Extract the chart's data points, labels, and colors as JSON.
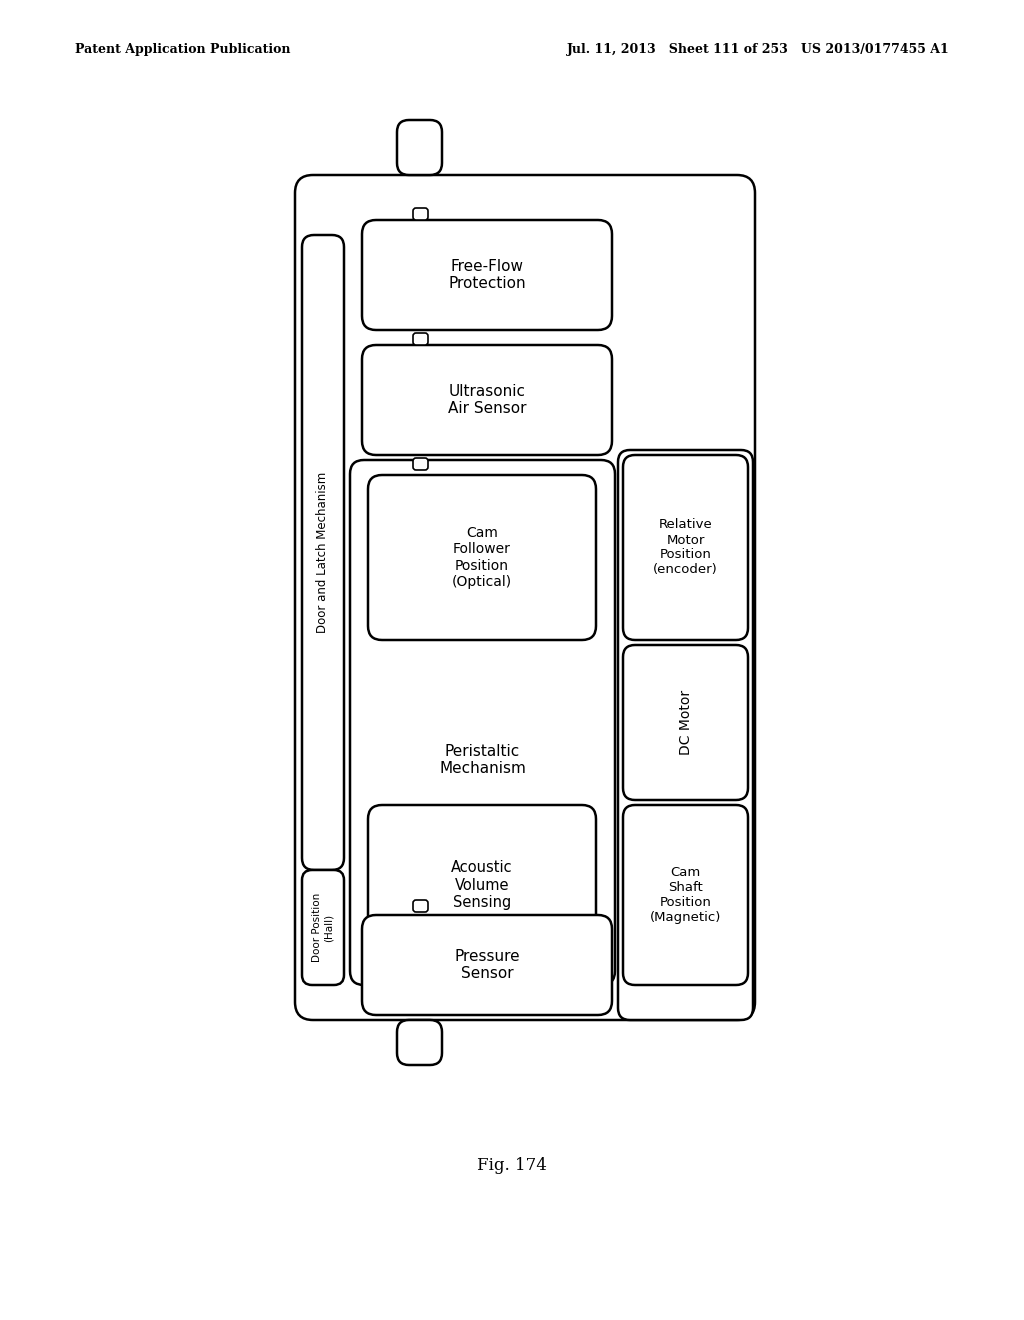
{
  "title_left": "Patent Application Publication",
  "title_right": "Jul. 11, 2013   Sheet 111 of 253   US 2013/0177455 A1",
  "fig_label": "Fig. 174",
  "background_color": "#ffffff",
  "line_color": "#000000",
  "box_fill": "#ffffff"
}
